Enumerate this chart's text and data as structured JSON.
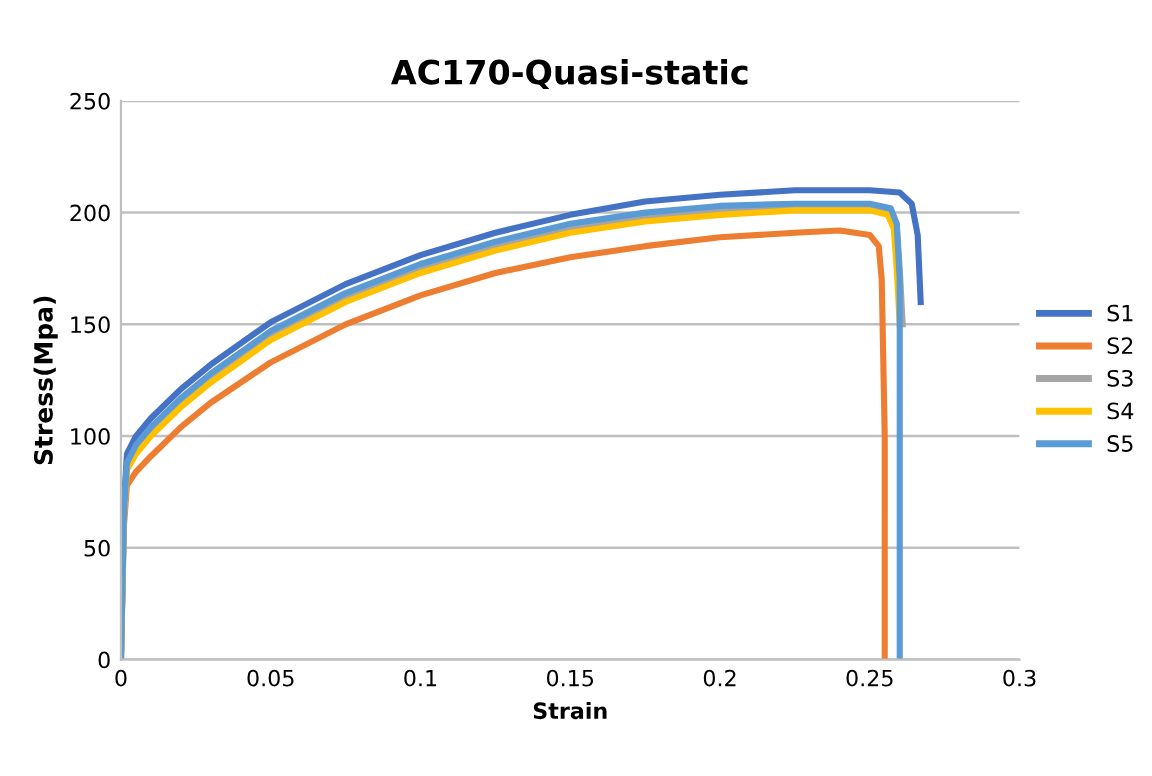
{
  "chart_data": {
    "type": "line",
    "title": "AC170-Quasi-static",
    "xlabel": "Strain",
    "ylabel": "Stress(Mpa)",
    "xlim": [
      0,
      0.3
    ],
    "xticks": [
      0,
      0.05,
      0.1,
      0.15,
      0.2,
      0.25,
      0.3
    ],
    "ylim": [
      0,
      250
    ],
    "yticks": [
      0,
      50,
      100,
      150,
      200,
      250
    ],
    "grid": "y",
    "legend": "right",
    "marker": "none",
    "line_style": "solid",
    "series": [
      {
        "name": "S1",
        "color": "#4472c4",
        "x": [
          0,
          0.001,
          0.002,
          0.005,
          0.01,
          0.02,
          0.03,
          0.05,
          0.075,
          0.1,
          0.125,
          0.15,
          0.175,
          0.2,
          0.225,
          0.25,
          0.26,
          0.264,
          0.266,
          0.267
        ],
        "values": [
          0,
          70,
          92,
          100,
          108,
          121,
          132,
          151,
          168,
          181,
          191,
          199,
          205,
          208,
          210,
          210,
          209,
          204,
          190,
          160
        ]
      },
      {
        "name": "S2",
        "color": "#ed7d31",
        "x": [
          0,
          0.001,
          0.002,
          0.005,
          0.01,
          0.02,
          0.03,
          0.05,
          0.075,
          0.1,
          0.125,
          0.15,
          0.175,
          0.2,
          0.225,
          0.24,
          0.25,
          0.253,
          0.254,
          0.255,
          0.255
        ],
        "values": [
          0,
          60,
          78,
          84,
          91,
          104,
          115,
          133,
          150,
          163,
          173,
          180,
          185,
          189,
          191,
          192,
          190,
          185,
          170,
          100,
          0
        ]
      },
      {
        "name": "S3",
        "color": "#a5a5a5",
        "x": [
          0,
          0.001,
          0.002,
          0.005,
          0.01,
          0.02,
          0.03,
          0.05,
          0.075,
          0.1,
          0.125,
          0.15,
          0.175,
          0.2,
          0.225,
          0.25,
          0.257,
          0.259,
          0.26,
          0.261
        ],
        "values": [
          0,
          65,
          86,
          94,
          102,
          115,
          126,
          145,
          162,
          175,
          185,
          193,
          198,
          201,
          203,
          203,
          201,
          195,
          175,
          150
        ]
      },
      {
        "name": "S4",
        "color": "#ffc000",
        "x": [
          0,
          0.001,
          0.002,
          0.005,
          0.01,
          0.02,
          0.03,
          0.05,
          0.075,
          0.1,
          0.125,
          0.15,
          0.175,
          0.2,
          0.225,
          0.25,
          0.256,
          0.258,
          0.259,
          0.26
        ],
        "values": [
          0,
          64,
          85,
          92,
          100,
          113,
          124,
          143,
          160,
          173,
          183,
          191,
          196,
          199,
          201,
          201,
          199,
          193,
          175,
          150
        ]
      },
      {
        "name": "S5",
        "color": "#5b9bd5",
        "x": [
          0,
          0.001,
          0.002,
          0.005,
          0.01,
          0.02,
          0.03,
          0.05,
          0.075,
          0.1,
          0.125,
          0.15,
          0.175,
          0.2,
          0.225,
          0.25,
          0.257,
          0.259,
          0.26,
          0.26
        ],
        "values": [
          0,
          66,
          88,
          96,
          104,
          117,
          128,
          147,
          164,
          177,
          187,
          195,
          200,
          203,
          204,
          204,
          202,
          195,
          170,
          0
        ]
      }
    ]
  }
}
